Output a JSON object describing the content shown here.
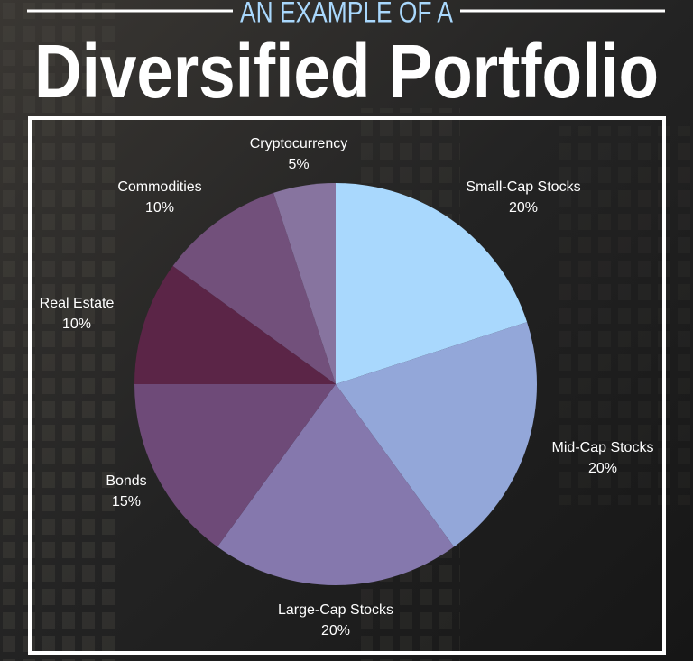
{
  "chart_data": {
    "type": "pie",
    "subtitle": "AN EXAMPLE OF A",
    "title": "Diversified Portfolio",
    "categories": [
      "Small-Cap Stocks",
      "Mid-Cap Stocks",
      "Large-Cap Stocks",
      "Bonds",
      "Real Estate",
      "Commodities",
      "Cryptocurrency"
    ],
    "values": [
      20,
      20,
      20,
      15,
      10,
      10,
      5
    ],
    "value_labels": [
      "20%",
      "20%",
      "20%",
      "15%",
      "10%",
      "10%",
      "5%"
    ],
    "colors": [
      "#a9d8fd",
      "#93a7d9",
      "#8578ad",
      "#6e4a78",
      "#5b2547",
      "#72507b",
      "#87749f"
    ]
  }
}
